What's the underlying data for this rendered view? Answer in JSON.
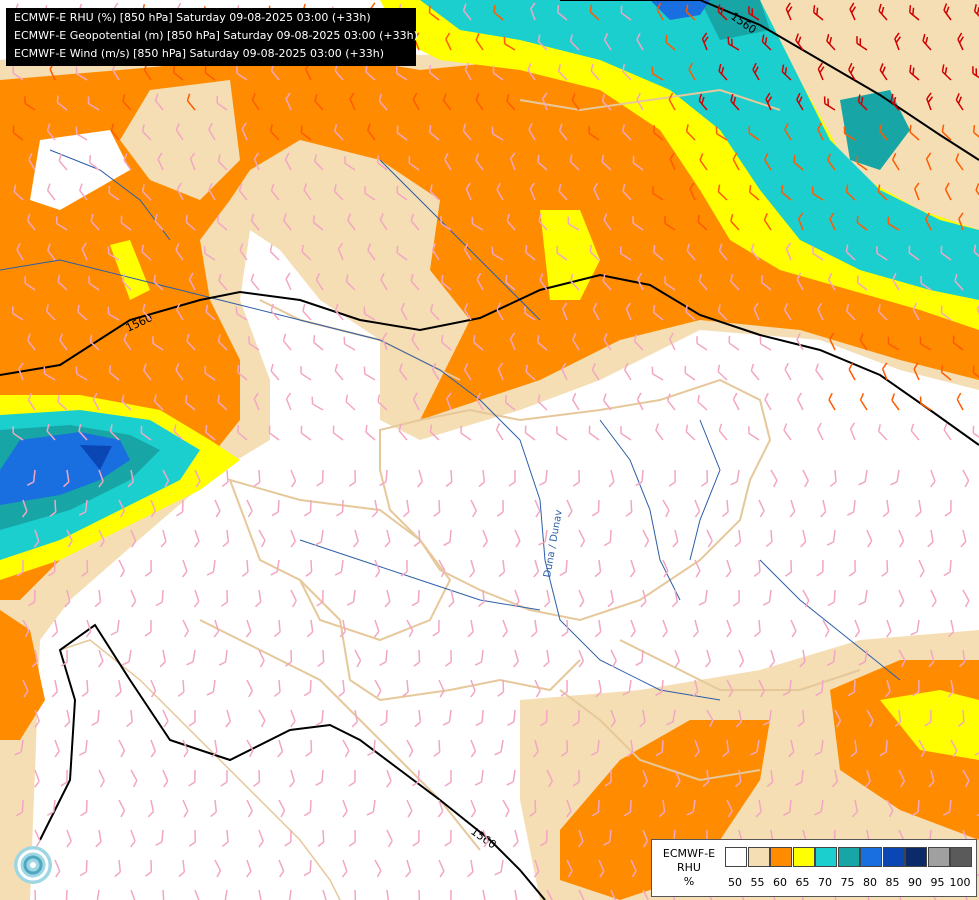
{
  "title_lines": [
    "ECMWF-E RHU (%) [850 hPa] Saturday 09-08-2025 03:00 (+33h)",
    "ECMWF-E Geopotential (m) [850 hPa] Saturday 09-08-2025 03:00 (+33h)",
    "ECMWF-E Wind (m/s) [850 hPa] Saturday 09-08-2025 03:00 (+33h)"
  ],
  "isohypse_labels": [
    "1560",
    "1560",
    "1560"
  ],
  "river_label": "Duna / Dunav",
  "legend": {
    "title_lines": [
      "ECMWF-E",
      "RHU",
      "%"
    ],
    "ticks": [
      "50",
      "55",
      "60",
      "65",
      "70",
      "75",
      "80",
      "85",
      "90",
      "95",
      "100"
    ],
    "colors": [
      "#ffffff",
      "#f5deb3",
      "#ff8c00",
      "#ffff00",
      "#1ccfcf",
      "#17a5a5",
      "#1a6fe0",
      "#0a46b4",
      "#0a2a6a",
      "#a0a0a0",
      "#5a5a5a"
    ]
  },
  "colors": {
    "border": "#e6c89a",
    "river": "#2c5ea8",
    "wind_low": "#f3a6c4",
    "wind_mid": "#ff5a00",
    "wind_high": "#d00000"
  }
}
